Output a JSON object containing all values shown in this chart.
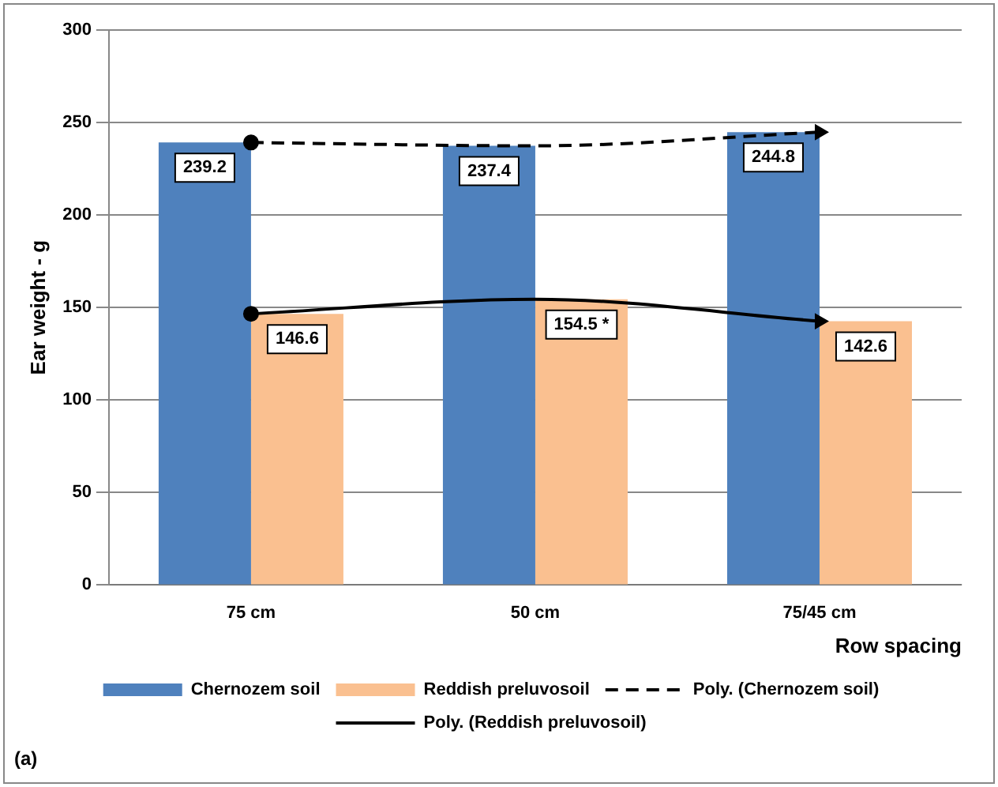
{
  "chart_data": {
    "type": "bar",
    "ylabel": "Ear weight - g",
    "xlabel": "Row spacing",
    "categories": [
      "75 cm",
      "50 cm",
      "75/45 cm"
    ],
    "series": [
      {
        "name": "Chernozem soil",
        "color": "#4f81bd",
        "values": [
          239.2,
          237.4,
          244.8
        ],
        "value_labels": [
          "239.2",
          "237.4",
          "244.8"
        ]
      },
      {
        "name": "Reddish preluvosoil",
        "color": "#fac090",
        "values": [
          146.6,
          154.5,
          142.6
        ],
        "value_labels": [
          "146.6",
          "154.5 *",
          "142.6"
        ]
      },
      {
        "name": "Poly. (Chernozem soil)",
        "type": "line",
        "color": "#000000",
        "line_style": "dashed",
        "marker": "circle",
        "values": [
          239.2,
          237.4,
          244.8
        ]
      },
      {
        "name": "Poly. (Reddish preluvosoil)",
        "type": "line",
        "color": "#000000",
        "line_style": "solid",
        "marker": "circle",
        "values": [
          146.6,
          154.5,
          142.6
        ]
      }
    ],
    "ylim": [
      0,
      300
    ],
    "yticks": [
      0,
      50,
      100,
      150,
      200,
      250,
      300
    ],
    "grid": "y",
    "legend": "bottom",
    "annotations": [
      "(a)"
    ]
  }
}
